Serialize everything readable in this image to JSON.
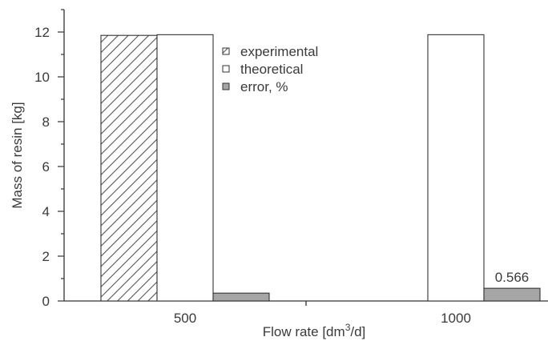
{
  "chart_data": {
    "type": "bar",
    "categories": [
      "500",
      "1000"
    ],
    "series": [
      {
        "name": "experimental",
        "values": [
          11.85,
          null
        ],
        "color": "#ffffff",
        "pattern": "diagonal-hatch"
      },
      {
        "name": "theoretical",
        "values": [
          11.88,
          11.88
        ],
        "color": "#ffffff",
        "pattern": "none"
      },
      {
        "name": "error, %",
        "values": [
          0.35,
          0.566
        ],
        "color": "#a6a6a6",
        "pattern": "none"
      }
    ],
    "data_labels": [
      {
        "series": "error, %",
        "category": "1000",
        "text": "0.566"
      }
    ],
    "xlabel_main": "Flow rate [dm",
    "xlabel_sup": "3",
    "xlabel_end": "/d]",
    "ylabel": "Mass of resin [kg]",
    "ylim": [
      0,
      13
    ],
    "yticks": [
      "0",
      "2",
      "4",
      "6",
      "8",
      "10",
      "12"
    ],
    "grid": false,
    "legend_position": "top-center"
  }
}
